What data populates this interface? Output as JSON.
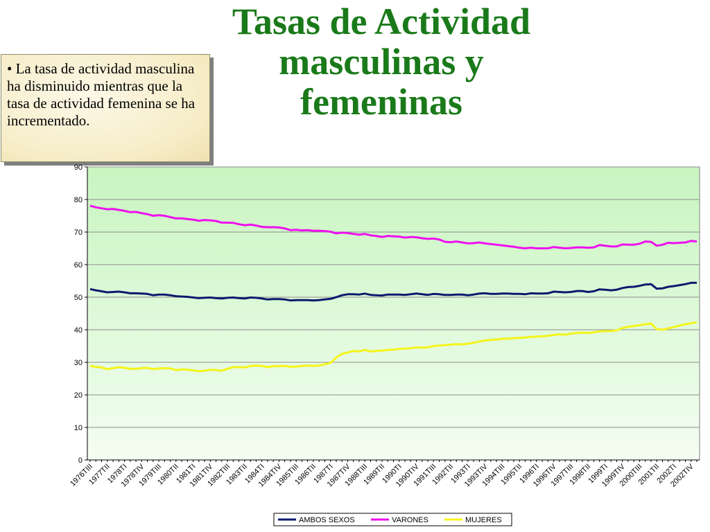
{
  "slide": {
    "title_lines": [
      "Tasas de Actividad",
      "masculinas y",
      "femeninas"
    ],
    "note": "• La tasa de actividad masculina ha disminuido mientras que la tasa  de actividad femenina se ha incrementado."
  },
  "colors": {
    "ambos": "#0a1a6e",
    "varones": "#ee10ee",
    "mujeres": "#f4f41a",
    "title": "#1a7a1a"
  },
  "chart_data": {
    "type": "line",
    "ylim": [
      0,
      90
    ],
    "yticks": [
      0,
      10,
      20,
      30,
      40,
      50,
      60,
      70,
      80,
      90
    ],
    "x_start": "1976TIII",
    "x_end": "2002TIV",
    "x_tick_labels": [
      "1976TIII",
      "1977TII",
      "1978TI",
      "1978TIV",
      "1979TIII",
      "1980TII",
      "1981TI",
      "1981TIV",
      "1982TIII",
      "1983TII",
      "1984TI",
      "1984TIV",
      "1985TIII",
      "1986TII",
      "1987TI",
      "1987TIV",
      "1988TIII",
      "1989TII",
      "1990TI",
      "1990TIV",
      "1991TIII",
      "1992TII",
      "1993TI",
      "1993TIV",
      "1994TIII",
      "1995TII",
      "1996TI",
      "1996TIV",
      "1997TIII",
      "1998TII",
      "1999TI",
      "1999TIV",
      "2000TIII",
      "2001TII",
      "2002TI",
      "2002TIV"
    ],
    "grid": true,
    "legend": "bottom",
    "series": [
      {
        "name": "AMBOS SEXOS",
        "values": [
          52.5,
          52.1,
          51.8,
          51.5,
          51.6,
          51.7,
          51.5,
          51.2,
          51.2,
          51.1,
          51.0,
          50.6,
          50.8,
          50.8,
          50.6,
          50.3,
          50.2,
          50.1,
          49.9,
          49.7,
          49.8,
          49.9,
          49.7,
          49.6,
          49.8,
          49.9,
          49.7,
          49.6,
          49.9,
          49.8,
          49.6,
          49.3,
          49.4,
          49.4,
          49.3,
          49.0,
          49.1,
          49.1,
          49.1,
          49.0,
          49.1,
          49.3,
          49.5,
          50.0,
          50.6,
          50.9,
          50.9,
          50.8,
          51.1,
          50.7,
          50.6,
          50.5,
          50.8,
          50.8,
          50.8,
          50.7,
          50.9,
          51.1,
          50.9,
          50.7,
          51.0,
          50.9,
          50.7,
          50.7,
          50.8,
          50.8,
          50.6,
          50.8,
          51.1,
          51.2,
          51.0,
          51.0,
          51.1,
          51.1,
          51.0,
          51.0,
          50.9,
          51.2,
          51.1,
          51.1,
          51.2,
          51.7,
          51.6,
          51.5,
          51.6,
          51.9,
          51.9,
          51.6,
          51.8,
          52.4,
          52.3,
          52.1,
          52.3,
          52.8,
          53.1,
          53.2,
          53.5,
          53.9,
          54.0,
          52.6,
          52.7,
          53.2,
          53.4,
          53.7,
          54.0,
          54.4,
          54.4
        ],
        "color_key": "ambos"
      },
      {
        "name": "VARONES",
        "values": [
          78.1,
          77.6,
          77.3,
          77.0,
          77.1,
          76.8,
          76.5,
          76.1,
          76.2,
          75.8,
          75.5,
          75.0,
          75.2,
          75.0,
          74.6,
          74.2,
          74.2,
          74.0,
          73.8,
          73.5,
          73.7,
          73.6,
          73.4,
          72.9,
          72.9,
          72.8,
          72.4,
          72.1,
          72.3,
          72.0,
          71.6,
          71.5,
          71.5,
          71.4,
          71.1,
          70.6,
          70.7,
          70.5,
          70.6,
          70.4,
          70.4,
          70.3,
          70.1,
          69.6,
          69.8,
          69.7,
          69.4,
          69.2,
          69.4,
          69.0,
          68.8,
          68.5,
          68.8,
          68.7,
          68.6,
          68.3,
          68.5,
          68.4,
          68.1,
          67.9,
          68.0,
          67.7,
          67.0,
          66.9,
          67.1,
          66.8,
          66.5,
          66.6,
          66.8,
          66.5,
          66.3,
          66.1,
          65.9,
          65.7,
          65.5,
          65.2,
          65.0,
          65.2,
          65.0,
          65.0,
          65.0,
          65.4,
          65.2,
          65.0,
          65.1,
          65.3,
          65.3,
          65.2,
          65.3,
          66.0,
          65.8,
          65.6,
          65.6,
          66.2,
          66.1,
          66.1,
          66.4,
          67.1,
          67.0,
          65.8,
          66.1,
          66.7,
          66.6,
          66.7,
          66.8,
          67.3,
          67.1
        ],
        "color_key": "varones"
      },
      {
        "name": "MUJERES",
        "values": [
          28.9,
          28.6,
          28.4,
          27.9,
          28.2,
          28.5,
          28.3,
          28.0,
          28.0,
          28.2,
          28.3,
          27.9,
          28.1,
          28.2,
          28.1,
          27.6,
          27.8,
          27.7,
          27.5,
          27.3,
          27.4,
          27.7,
          27.6,
          27.4,
          28.0,
          28.5,
          28.5,
          28.4,
          28.9,
          29.0,
          28.9,
          28.5,
          28.8,
          28.8,
          28.9,
          28.6,
          28.7,
          28.9,
          29.0,
          28.9,
          29.0,
          29.4,
          29.8,
          31.5,
          32.6,
          33.0,
          33.5,
          33.3,
          33.8,
          33.3,
          33.5,
          33.6,
          33.8,
          33.9,
          34.1,
          34.2,
          34.3,
          34.6,
          34.5,
          34.6,
          35.0,
          35.1,
          35.3,
          35.4,
          35.6,
          35.5,
          35.7,
          36.0,
          36.4,
          36.7,
          36.9,
          37.0,
          37.2,
          37.3,
          37.4,
          37.5,
          37.6,
          37.8,
          37.9,
          38.0,
          38.1,
          38.4,
          38.6,
          38.5,
          38.8,
          39.0,
          39.1,
          39.0,
          39.2,
          39.5,
          39.6,
          39.6,
          39.8,
          40.5,
          40.9,
          41.1,
          41.4,
          41.7,
          41.9,
          40.2,
          40.0,
          40.4,
          40.8,
          41.3,
          41.7,
          42.0,
          42.3
        ],
        "color_key": "mujeres"
      }
    ]
  }
}
